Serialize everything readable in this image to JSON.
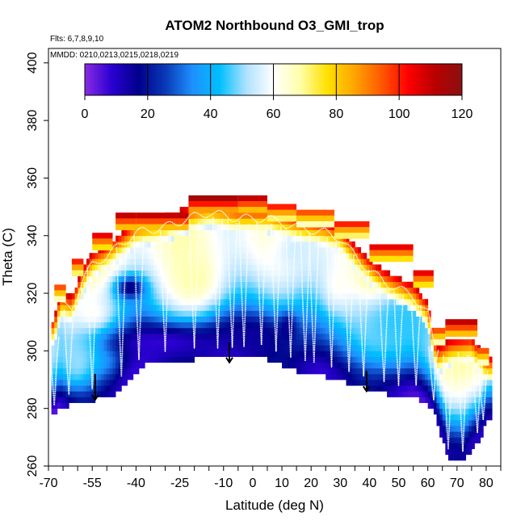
{
  "chart_data": {
    "type": "heatmap",
    "title": "ATOM2 Northbound O3_GMI_trop",
    "flights_note": "Flts: 6,7,8,9,10",
    "dates_note": "MMDD: 0210,0213,0215,0218,0219",
    "xlabel": "Latitude (deg N)",
    "ylabel": "Theta (C)",
    "xlim": [
      -70,
      85
    ],
    "ylim": [
      260,
      405
    ],
    "x_tick_labels": [
      "-70",
      "-55",
      "-40",
      "-25",
      "-10",
      "0",
      "10",
      "20",
      "30",
      "40",
      "50",
      "60",
      "70",
      "80"
    ],
    "x_tick_values": [
      -70,
      -55,
      -40,
      -25,
      -10,
      0,
      10,
      20,
      30,
      40,
      50,
      60,
      70,
      80
    ],
    "x_minor_step": 5,
    "y_tick_labels": [
      "260",
      "280",
      "300",
      "320",
      "340",
      "360",
      "380",
      "400"
    ],
    "y_tick_values": [
      260,
      280,
      300,
      320,
      340,
      360,
      380,
      400
    ],
    "colorbar": {
      "min": 0,
      "max": 120,
      "tick_labels": [
        "0",
        "20",
        "40",
        "60",
        "80",
        "100",
        "120"
      ],
      "tick_values": [
        0,
        20,
        40,
        60,
        80,
        100,
        120
      ],
      "colors": [
        "#8a2be2",
        "#2a00d0",
        "#00008b",
        "#0a3ab8",
        "#1e90ff",
        "#00bfff",
        "#b0e2ff",
        "#ffffff",
        "#ffffa8",
        "#ffe100",
        "#ffa500",
        "#ff5a00",
        "#ff0000",
        "#b80000",
        "#8b1010"
      ]
    },
    "floor_boundary": [
      [
        -68,
        278
      ],
      [
        -66,
        281
      ],
      [
        -60,
        283
      ],
      [
        -48,
        285
      ],
      [
        -37,
        296
      ],
      [
        -20,
        298
      ],
      [
        -10,
        298
      ],
      [
        3,
        299
      ],
      [
        15,
        294
      ],
      [
        25,
        292
      ],
      [
        39,
        288
      ],
      [
        50,
        285
      ],
      [
        55,
        286
      ],
      [
        62,
        280
      ],
      [
        67,
        263
      ],
      [
        72,
        262
      ],
      [
        78,
        270
      ],
      [
        80,
        276
      ]
    ],
    "top_boundary": [
      [
        -68,
        310
      ],
      [
        -66,
        319
      ],
      [
        -62,
        318
      ],
      [
        -58,
        328
      ],
      [
        -55,
        333
      ],
      [
        -50,
        336
      ],
      [
        -45,
        340
      ],
      [
        -40,
        344
      ],
      [
        -30,
        346
      ],
      [
        -22,
        349
      ],
      [
        -15,
        351
      ],
      [
        -5,
        349
      ],
      [
        5,
        349
      ],
      [
        15,
        346
      ],
      [
        25,
        344
      ],
      [
        30,
        342
      ],
      [
        35,
        336
      ],
      [
        40,
        331
      ],
      [
        45,
        327
      ],
      [
        55,
        322
      ],
      [
        60,
        316
      ],
      [
        63,
        300
      ],
      [
        68,
        303
      ],
      [
        75,
        304
      ],
      [
        80,
        297
      ]
    ],
    "cap_segments": [
      {
        "lat": [
          -68,
          -64
        ],
        "theta": 321,
        "o3": 95
      },
      {
        "lat": [
          -62,
          -58
        ],
        "theta": 330,
        "o3": 100
      },
      {
        "lat": [
          -55,
          -48
        ],
        "theta": 339,
        "o3": 105
      },
      {
        "lat": [
          -47,
          -40
        ],
        "theta": 346,
        "o3": 110
      },
      {
        "lat": [
          -40,
          -22
        ],
        "theta": 346,
        "o3": 110
      },
      {
        "lat": [
          -22,
          -5
        ],
        "theta": 352,
        "o3": 115
      },
      {
        "lat": [
          -5,
          5
        ],
        "theta": 352,
        "o3": 110
      },
      {
        "lat": [
          5,
          15
        ],
        "theta": 349,
        "o3": 100
      },
      {
        "lat": [
          15,
          28
        ],
        "theta": 347,
        "o3": 95
      },
      {
        "lat": [
          28,
          40
        ],
        "theta": 343,
        "o3": 100
      },
      {
        "lat": [
          40,
          55
        ],
        "theta": 335,
        "o3": 105
      },
      {
        "lat": [
          55,
          62
        ],
        "theta": 326,
        "o3": 105
      },
      {
        "lat": [
          62,
          66
        ],
        "theta": 306,
        "o3": 95
      },
      {
        "lat": [
          66,
          77
        ],
        "theta": 309,
        "o3": 110
      },
      {
        "lat": [
          77,
          81
        ],
        "theta": 299,
        "o3": 95
      }
    ],
    "interior_blobs": [
      {
        "lat": -20,
        "theta": 325,
        "rx": 12,
        "ry": 14,
        "o3": 68
      },
      {
        "lat": 30,
        "theta": 323,
        "rx": 8,
        "ry": 12,
        "o3": 62
      },
      {
        "lat": 42,
        "theta": 325,
        "rx": 6,
        "ry": 8,
        "o3": 75
      },
      {
        "lat": -55,
        "theta": 312,
        "rx": 6,
        "ry": 6,
        "o3": 62
      },
      {
        "lat": 15,
        "theta": 335,
        "rx": 10,
        "ry": 10,
        "o3": 55
      },
      {
        "lat": -30,
        "theta": 303,
        "rx": 22,
        "ry": 6,
        "o3": 8
      },
      {
        "lat": 0,
        "theta": 305,
        "rx": 14,
        "ry": 7,
        "o3": 15
      },
      {
        "lat": -42,
        "theta": 322,
        "rx": 5,
        "ry": 4,
        "o3": 15
      },
      {
        "lat": 12,
        "theta": 308,
        "rx": 3,
        "ry": 5,
        "o3": 15
      },
      {
        "lat": 50,
        "theta": 310,
        "rx": 15,
        "ry": 12,
        "o3": 45
      },
      {
        "lat": -60,
        "theta": 296,
        "rx": 6,
        "ry": 10,
        "o3": 50
      }
    ],
    "profile_lats": [
      -68,
      -63,
      -55,
      -45,
      -39,
      -30,
      -20,
      -12,
      -7,
      -3,
      3,
      8,
      13,
      18,
      21,
      27,
      33,
      38,
      45,
      50,
      56,
      62,
      67,
      72,
      77,
      79
    ],
    "flight_arrows": [
      {
        "lat": -54,
        "theta_from": 292,
        "theta_to": 283
      },
      {
        "lat": -8,
        "theta_from": 303,
        "theta_to": 296
      },
      {
        "lat": 39,
        "theta_from": 293,
        "theta_to": 286
      }
    ]
  }
}
